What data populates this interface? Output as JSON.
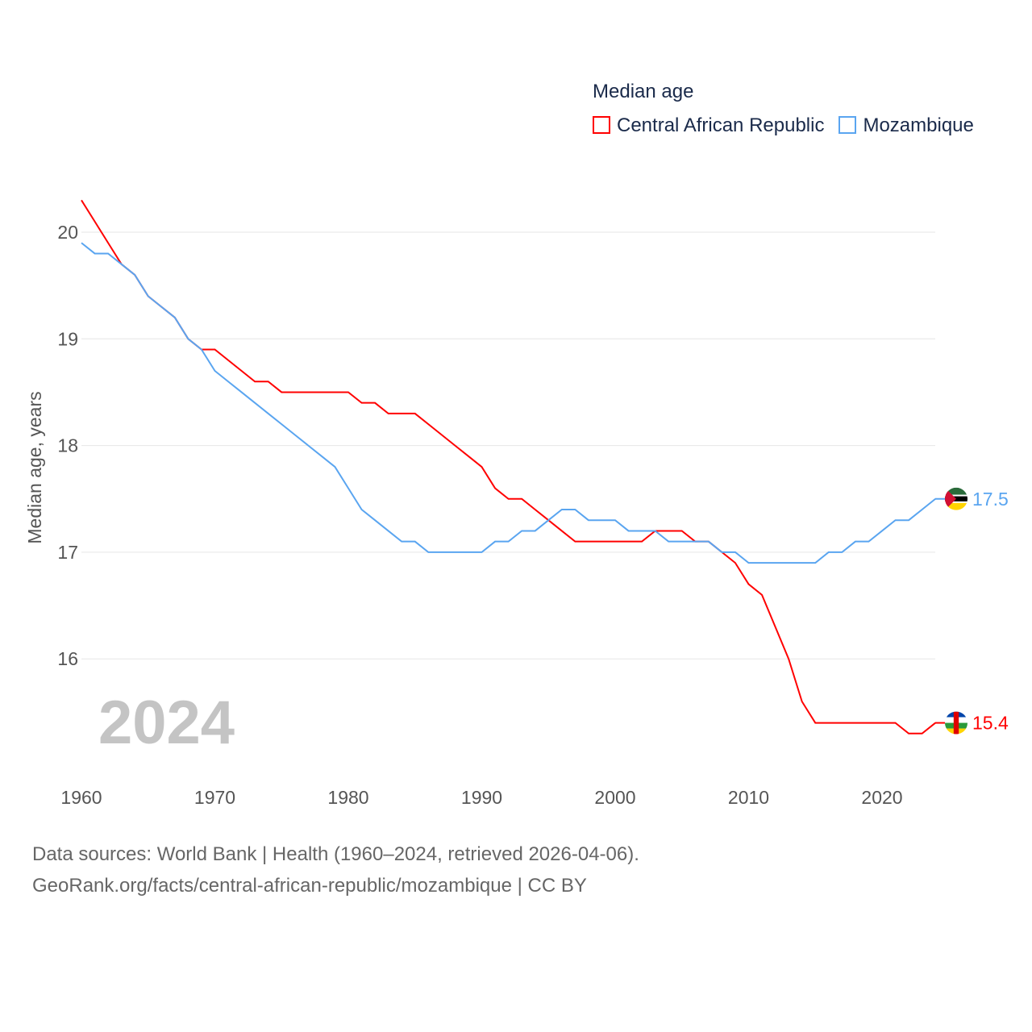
{
  "chart_data": {
    "type": "line",
    "title": "Median age",
    "ylabel": "Median age, years",
    "xlabel": "",
    "ylim": [
      15,
      20.4
    ],
    "xlim": [
      1960,
      2024
    ],
    "yticks": [
      "16",
      "17",
      "18",
      "19",
      "20"
    ],
    "xticks": [
      "1960",
      "1970",
      "1980",
      "1990",
      "2000",
      "2010",
      "2020"
    ],
    "grid": true,
    "legend_placement": "top-right",
    "year_label": "2024",
    "x": [
      1960,
      1961,
      1962,
      1963,
      1964,
      1965,
      1966,
      1967,
      1968,
      1969,
      1970,
      1971,
      1972,
      1973,
      1974,
      1975,
      1976,
      1977,
      1978,
      1979,
      1980,
      1981,
      1982,
      1983,
      1984,
      1985,
      1986,
      1987,
      1988,
      1989,
      1990,
      1991,
      1992,
      1993,
      1994,
      1995,
      1996,
      1997,
      1998,
      1999,
      2000,
      2001,
      2002,
      2003,
      2004,
      2005,
      2006,
      2007,
      2008,
      2009,
      2010,
      2011,
      2012,
      2013,
      2014,
      2015,
      2016,
      2017,
      2018,
      2019,
      2020,
      2021,
      2022,
      2023,
      2024
    ],
    "series": [
      {
        "name": "Central African Republic",
        "color": "#ff0000",
        "end_label": "15.4",
        "values": [
          20.3,
          20.1,
          19.9,
          19.7,
          19.6,
          19.4,
          19.3,
          19.2,
          19.0,
          18.9,
          18.9,
          18.8,
          18.7,
          18.6,
          18.6,
          18.5,
          18.5,
          18.5,
          18.5,
          18.5,
          18.5,
          18.4,
          18.4,
          18.3,
          18.3,
          18.3,
          18.2,
          18.1,
          18.0,
          17.9,
          17.8,
          17.6,
          17.5,
          17.5,
          17.4,
          17.3,
          17.2,
          17.1,
          17.1,
          17.1,
          17.1,
          17.1,
          17.1,
          17.2,
          17.2,
          17.2,
          17.1,
          17.1,
          17.0,
          16.9,
          16.7,
          16.6,
          16.3,
          16.0,
          15.6,
          15.4,
          15.4,
          15.4,
          15.4,
          15.4,
          15.4,
          15.4,
          15.3,
          15.3,
          15.4
        ]
      },
      {
        "name": "Mozambique",
        "color": "#5aa5f0",
        "end_label": "17.5",
        "values": [
          19.9,
          19.8,
          19.8,
          19.7,
          19.6,
          19.4,
          19.3,
          19.2,
          19.0,
          18.9,
          18.7,
          18.6,
          18.5,
          18.4,
          18.3,
          18.2,
          18.1,
          18.0,
          17.9,
          17.8,
          17.6,
          17.4,
          17.3,
          17.2,
          17.1,
          17.1,
          17.0,
          17.0,
          17.0,
          17.0,
          17.0,
          17.1,
          17.1,
          17.2,
          17.2,
          17.3,
          17.4,
          17.4,
          17.3,
          17.3,
          17.3,
          17.2,
          17.2,
          17.2,
          17.1,
          17.1,
          17.1,
          17.1,
          17.0,
          17.0,
          16.9,
          16.9,
          16.9,
          16.9,
          16.9,
          16.9,
          17.0,
          17.0,
          17.1,
          17.1,
          17.2,
          17.3,
          17.3,
          17.4,
          17.5
        ]
      }
    ]
  },
  "footer": {
    "line1": "Data sources: World Bank | Health (1960–2024, retrieved 2026-04-06).",
    "line2": "GeoRank.org/facts/central-african-republic/mozambique | CC BY"
  }
}
